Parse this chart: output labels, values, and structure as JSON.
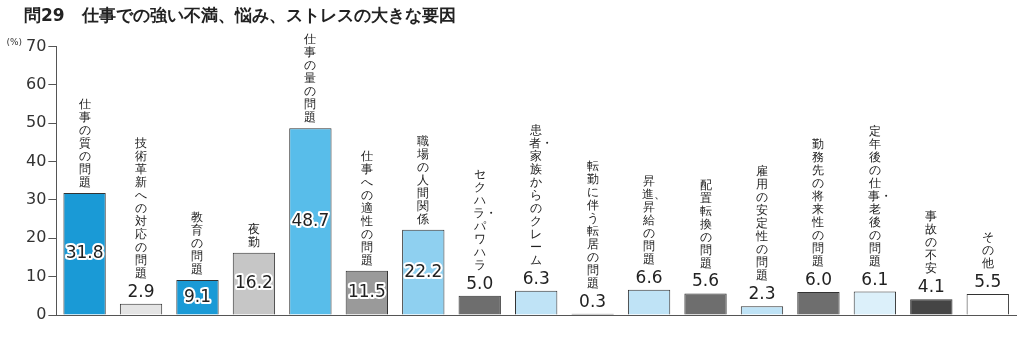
{
  "chart_data": {
    "type": "bar",
    "title": "問29　仕事での強い不満、悩み、ストレスの大きな要因",
    "ylabel": "(%)",
    "categories": [
      "仕事の質の問題",
      "技術革新への対応の問題",
      "教育の問題",
      "夜勤",
      "仕事の量の問題",
      "仕事への適性の問題",
      "職場の人間関係",
      "セクハラ・パワハラ",
      "患者・家族からのクレーム",
      "転勤に伴う転居の問題",
      "昇進、昇給の問題",
      "配置転換の問題",
      "雇用の安定性の問題",
      "勤務先の将来性の問題",
      "定年後の仕事・老後の問題",
      "事故の不安",
      "その他"
    ],
    "values": [
      31.8,
      2.9,
      9.1,
      16.2,
      48.7,
      11.5,
      22.2,
      5.0,
      6.3,
      0.3,
      6.6,
      5.6,
      2.3,
      6.0,
      6.1,
      4.1,
      5.5
    ],
    "colors": [
      "#1a9ad6",
      "#e4e4e4",
      "#1a9ad6",
      "#c6c6c6",
      "#58bdea",
      "#9a9a9a",
      "#8fd0f0",
      "#6e6e6e",
      "#bfe3f6",
      "#222222",
      "#bfe3f6",
      "#6e6e6e",
      "#bfe3f6",
      "#6e6e6e",
      "#dcf0fa",
      "#454545",
      "#ffffff"
    ],
    "value_labels": [
      "31.8",
      "2.9",
      "9.1",
      "16.2",
      "48.7",
      "11.5",
      "22.2",
      "5.0",
      "6.3",
      "0.3",
      "6.6",
      "5.6",
      "2.3",
      "6.0",
      "6.1",
      "4.1",
      "5.5"
    ],
    "ylim": [
      0,
      70
    ],
    "yticks": [
      0,
      10,
      20,
      30,
      40,
      50,
      60,
      70
    ],
    "grid": false,
    "legend": false
  }
}
